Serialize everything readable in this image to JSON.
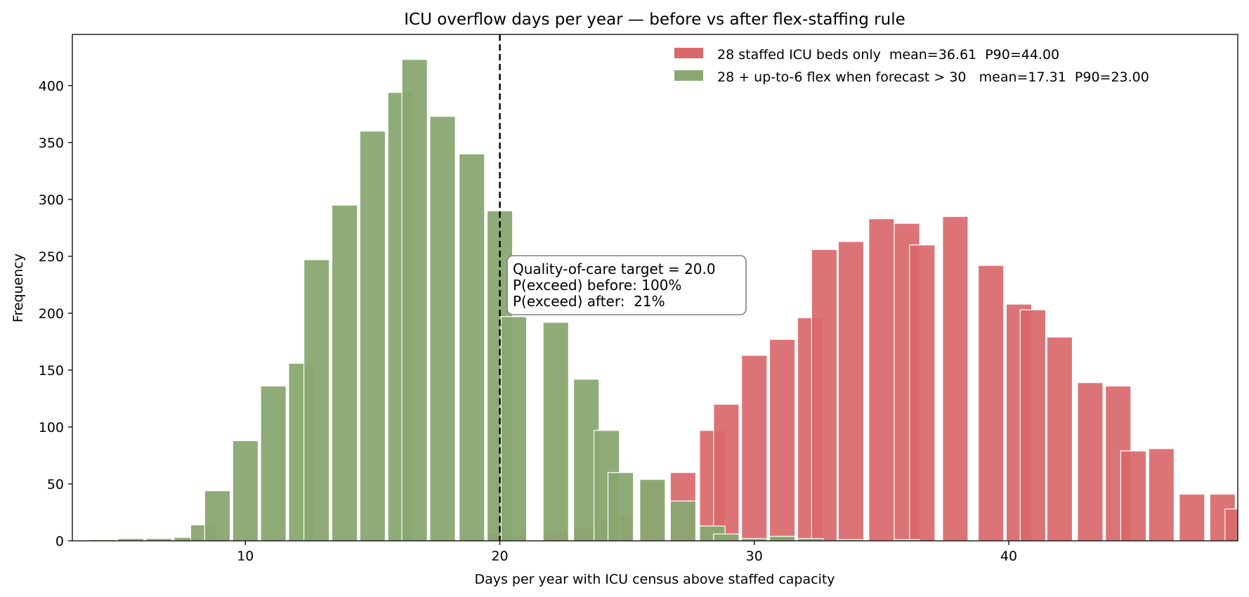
{
  "chart_data": {
    "type": "bar",
    "title": "ICU overflow days per year — before vs after flex-staffing rule",
    "xlabel": "Days per year with ICU census above staffed capacity",
    "ylabel": "Frequency",
    "xlim": [
      3.2,
      49.0
    ],
    "ylim": [
      0,
      445
    ],
    "xticks": [
      10,
      20,
      30,
      40
    ],
    "yticks": [
      0,
      50,
      100,
      150,
      200,
      250,
      300,
      350,
      400
    ],
    "legend_position": "top-right",
    "grid": false,
    "series": [
      {
        "name": "28 staffed ICU beds only  mean=36.61  P90=44.00",
        "color": "#d9686b",
        "bars": [
          [
            20,
            7
          ],
          [
            20.55,
            5
          ],
          [
            22.2,
            8
          ],
          [
            23.4,
            11
          ],
          [
            24.2,
            19
          ],
          [
            24.75,
            23
          ],
          [
            26,
            52
          ],
          [
            27.2,
            60
          ],
          [
            28.35,
            97
          ],
          [
            28.9,
            120
          ],
          [
            30,
            163
          ],
          [
            31.1,
            177
          ],
          [
            32.2,
            196
          ],
          [
            32.75,
            256
          ],
          [
            33.8,
            263
          ],
          [
            35,
            283
          ],
          [
            36,
            279
          ],
          [
            36.6,
            260
          ],
          [
            37.9,
            285
          ],
          [
            39.3,
            242
          ],
          [
            40.4,
            208
          ],
          [
            40.95,
            203
          ],
          [
            42,
            179
          ],
          [
            43.2,
            139
          ],
          [
            44.3,
            136
          ],
          [
            44.9,
            79
          ],
          [
            46,
            81
          ],
          [
            47.2,
            41
          ],
          [
            48.4,
            41
          ],
          [
            49,
            28
          ]
        ]
      },
      {
        "name": "28 + up-to-6 flex when forecast > 30   mean=17.31  P90=23.00",
        "color": "#89a871",
        "bars": [
          [
            4.4,
            1
          ],
          [
            5.5,
            2
          ],
          [
            6.6,
            2
          ],
          [
            7.7,
            3
          ],
          [
            8.35,
            14
          ],
          [
            8.9,
            44
          ],
          [
            10,
            88
          ],
          [
            11.1,
            136
          ],
          [
            12.2,
            156
          ],
          [
            12.8,
            247
          ],
          [
            13.9,
            295
          ],
          [
            15,
            360
          ],
          [
            16.1,
            394
          ],
          [
            16.65,
            423
          ],
          [
            17.75,
            373
          ],
          [
            18.9,
            340
          ],
          [
            20,
            290
          ],
          [
            20.55,
            197
          ],
          [
            22.2,
            192
          ],
          [
            23.4,
            142
          ],
          [
            24.2,
            97
          ],
          [
            24.75,
            60
          ],
          [
            26,
            54
          ],
          [
            27.2,
            35
          ],
          [
            28.35,
            13
          ],
          [
            28.9,
            6
          ],
          [
            30,
            2
          ],
          [
            31.1,
            4
          ],
          [
            32.2,
            2
          ],
          [
            33.8,
            1
          ],
          [
            36,
            1
          ]
        ]
      }
    ],
    "threshold": {
      "x": 20,
      "lines": [
        "Quality-of-care target = 20.0",
        "P(exceed) before: 100%",
        "P(exceed) after:  21%"
      ]
    }
  }
}
